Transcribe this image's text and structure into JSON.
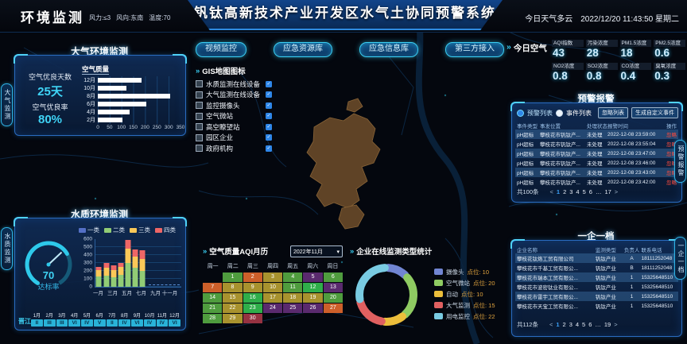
{
  "icons": {
    "chevrons": "»",
    "caret_down": "▾",
    "check": "✓",
    "prev": "<",
    "next": ">"
  },
  "colors": {
    "accent": "#3ad0f5",
    "alert_red": "#ff4a3c"
  },
  "header": {
    "app_title": "环境监测",
    "wind": "风力:≤3",
    "wind_dir": "风向:东南",
    "temp": "温度:70",
    "main_title": "钒钛高新技术产业开发区水气土协同预警系统",
    "weather": "今日天气多云",
    "datetime": "2022/12/20 11:43:50 星期二"
  },
  "side_tabs": {
    "left_top": "大气监测",
    "left_bottom": "水质监测",
    "right_top": "预警报警",
    "right_bottom": "一企一档"
  },
  "air_panel": {
    "title": "大气环境监测",
    "days_label": "空气优良天数",
    "days_value": "25天",
    "rate_label": "空气优良率",
    "rate_value": "80%",
    "chart": {
      "type": "bar",
      "title": "空气质量",
      "categories": [
        "12月",
        "10月",
        "8月",
        "6月",
        "4月",
        "2月"
      ],
      "values": [
        185,
        120,
        305,
        205,
        135,
        105
      ],
      "xticks": [
        0,
        50,
        100,
        150,
        200,
        250,
        300,
        350
      ],
      "xmax": 350
    }
  },
  "water_panel": {
    "title": "水质环境监测",
    "gauge": {
      "value": "70",
      "label": "达标率"
    },
    "chart": {
      "type": "stacked-bar",
      "categories": [
        "一月",
        "二月",
        "三月",
        "四月",
        "五月",
        "六月",
        "七月",
        "八月",
        "九月",
        "十月",
        "十一月",
        "十二月"
      ],
      "x_labels": [
        "一月",
        "三月",
        "五月",
        "七月",
        "九月",
        "十一月"
      ],
      "yticks": [
        0,
        100,
        200,
        300,
        400,
        500,
        600
      ],
      "ymax": 600,
      "series": [
        {
          "name": "一类",
          "color": "#5470c6",
          "values": [
            0,
            0,
            0,
            0,
            0,
            0,
            0,
            0,
            0,
            0,
            0,
            0
          ]
        },
        {
          "name": "二类",
          "color": "#91cc75",
          "values": [
            130,
            140,
            120,
            150,
            300,
            240,
            205,
            0,
            0,
            0,
            0,
            0
          ]
        },
        {
          "name": "三类",
          "color": "#fac858",
          "values": [
            80,
            100,
            90,
            100,
            180,
            145,
            150,
            0,
            0,
            0,
            0,
            0
          ]
        },
        {
          "name": "四类",
          "color": "#ee6666",
          "values": [
            45,
            60,
            60,
            55,
            110,
            90,
            105,
            0,
            0,
            0,
            0,
            0
          ]
        }
      ]
    },
    "river": {
      "name": "晋江",
      "months": [
        "1月",
        "2月",
        "3月",
        "4月",
        "5月",
        "6月",
        "7月",
        "8月",
        "9月",
        "10月",
        "11月",
        "12月"
      ],
      "grades": [
        "II",
        "III",
        "III",
        "VI",
        "IV",
        "V",
        "II",
        "IV",
        "VI",
        "IV",
        "IV",
        "VI"
      ]
    }
  },
  "map": {
    "buttons": [
      "视频监控",
      "应急资源库",
      "应急信息库",
      "第三方接入"
    ],
    "legend_title": "GIS地图图标",
    "legend_items": [
      {
        "label": "水质监测在线设备",
        "checked": true
      },
      {
        "label": "大气监测在线设备",
        "checked": true
      },
      {
        "label": "监控摄像头",
        "checked": true
      },
      {
        "label": "空气微站",
        "checked": true
      },
      {
        "label": "高空瞭望站",
        "checked": true
      },
      {
        "label": "园区企业",
        "checked": true
      },
      {
        "label": "政府机构",
        "checked": true
      }
    ]
  },
  "today_air": {
    "title": "今日空气",
    "stats": [
      {
        "label": "AQI指数",
        "value": "43"
      },
      {
        "label": "污染浓度",
        "value": "28"
      },
      {
        "label": "PM1.5浓度",
        "value": "18"
      },
      {
        "label": "PM2.5浓度",
        "value": "0.6"
      },
      {
        "label": "NO2浓度",
        "value": "0.8"
      },
      {
        "label": "SO2浓度",
        "value": "0.8"
      },
      {
        "label": "CO浓度",
        "value": "0.4"
      },
      {
        "label": "臭氧浓度",
        "value": "0.3"
      }
    ]
  },
  "alerts": {
    "title": "预警报警",
    "tabs": [
      {
        "label": "预警列表",
        "active": true
      },
      {
        "label": "事件列表",
        "active": false
      }
    ],
    "buttons": [
      "忽略列表",
      "生成自定义事件"
    ],
    "headers": [
      "事件类型",
      "事发位置",
      "处理状态",
      "报警时间",
      "操作"
    ],
    "rows": [
      {
        "type": "pH超标",
        "location": "攀枝花市钒钛产...",
        "status": "未处理",
        "time": "2022-12-08 23:59:00",
        "action": "忽略"
      },
      {
        "type": "pH超标",
        "location": "攀枝花市钒钛产...",
        "status": "未处理",
        "time": "2022-12-08 23:55:04",
        "action": "忽略"
      },
      {
        "type": "pH超标",
        "location": "攀枝花市钒钛产...",
        "status": "未处理",
        "time": "2022-12-08 23:47:00",
        "action": "忽略"
      },
      {
        "type": "pH超标",
        "location": "攀枝花市钒钛产...",
        "status": "未处理",
        "time": "2022-12-08 23:46:00",
        "action": "忽略"
      },
      {
        "type": "pH超标",
        "location": "攀枝花市钒钛产...",
        "status": "未处理",
        "time": "2022-12-08 23:43:00",
        "action": "忽略"
      },
      {
        "type": "pH超标",
        "location": "攀枝花市钒钛产...",
        "status": "未处理",
        "time": "2022-12-08 23:42:00",
        "action": "忽略"
      }
    ],
    "total": "共100条",
    "pagination": {
      "pages": [
        "1",
        "2",
        "3",
        "4",
        "5",
        "6",
        "…",
        "17"
      ],
      "current": "1"
    }
  },
  "enterprise": {
    "title": "一企一档",
    "headers": [
      "企业名称",
      "监测类型",
      "负责人",
      "联系电话"
    ],
    "rows": [
      {
        "name": "攀枝花钛烙工贸有限公司",
        "type": "钒钛产业",
        "person": "A",
        "phone": "18111252048"
      },
      {
        "name": "攀枝花市千基工贸有限公...",
        "type": "钒钛产业",
        "person": "B",
        "phone": "18111252048"
      },
      {
        "name": "攀枝花市瑞本工贸有限公...",
        "type": "钒钛产业",
        "person": "1",
        "phone": "15325648510"
      },
      {
        "name": "攀枝花市波密钛业有限公...",
        "type": "钒钛产业",
        "person": "1",
        "phone": "15325648510"
      },
      {
        "name": "攀枝花市雷宇工贸有限公...",
        "type": "钒钛产业",
        "person": "1",
        "phone": "15325648510"
      },
      {
        "name": "攀枝花市天宝工贸有限公...",
        "type": "钒钛产业",
        "person": "1",
        "phone": "15325648510"
      }
    ],
    "total": "共112条",
    "pagination": {
      "pages": [
        "1",
        "2",
        "3",
        "4",
        "5",
        "6",
        "…",
        "19"
      ],
      "current": "1"
    }
  },
  "calendar": {
    "title": "空气质量AQI月历",
    "month": "2022年11月",
    "weekdays": [
      "周一",
      "周二",
      "周三",
      "周四",
      "周五",
      "周六",
      "周日"
    ],
    "start_offset": 1,
    "palette": {
      "g": "#4f9c3e",
      "G": "#2fae4a",
      "y": "#a8922e",
      "o": "#cd5f2a",
      "p": "#5a2a6e",
      "m": "#963241"
    },
    "day_levels": [
      "g",
      "o",
      "y",
      "g",
      "p",
      "g",
      "o",
      "y",
      "y",
      "y",
      "g",
      "G",
      "p",
      "g",
      "y",
      "G",
      "y",
      "y",
      "y",
      "g",
      "g",
      "y",
      "G",
      "p",
      "p",
      "p",
      "o",
      "g",
      "y",
      "m"
    ]
  },
  "donut": {
    "title": "企业在线监测类型统计",
    "label_prefix": "点位: ",
    "items": [
      {
        "label": "摄像头",
        "value": 10,
        "color": "#7185d2"
      },
      {
        "label": "空气微站",
        "value": 20,
        "color": "#8fcb62"
      },
      {
        "label": "自动",
        "value": 10,
        "color": "#ecbe3b"
      },
      {
        "label": "大气监测",
        "value": 15,
        "color": "#e06060"
      },
      {
        "label": "用电监控",
        "value": 22,
        "color": "#79cbe2"
      }
    ]
  }
}
